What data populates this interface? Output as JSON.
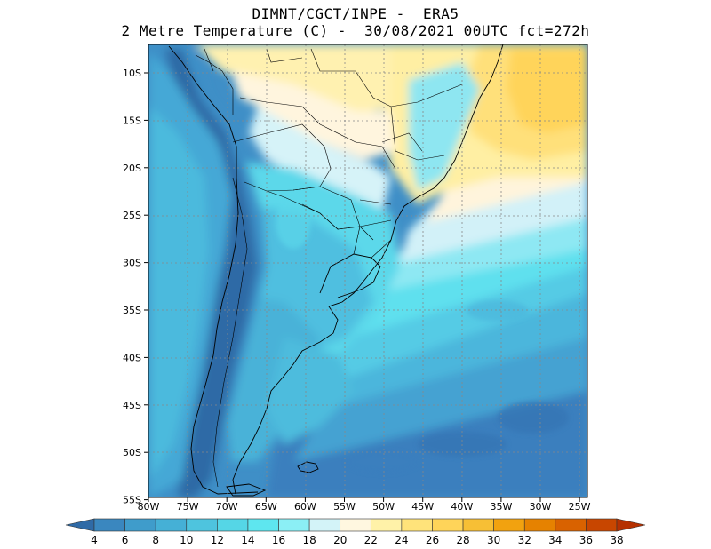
{
  "header": {
    "line1": "DIMNT/CGCT/INPE -  ERA5",
    "line2": "2 Metre Temperature (C) -  30/08/2021 00UTC fct=272h"
  },
  "map": {
    "lon_range": [
      -80,
      -24
    ],
    "lat_range": [
      -55,
      -8
    ],
    "lat_ticks": [
      "10S",
      "15S",
      "20S",
      "25S",
      "30S",
      "35S",
      "40S",
      "45S",
      "50S",
      "55S"
    ],
    "lon_ticks": [
      "80W",
      "75W",
      "70W",
      "65W",
      "60W",
      "55W",
      "50W",
      "45W",
      "40W",
      "35W",
      "30W",
      "25W"
    ],
    "grid": "dotted"
  },
  "colorbar": {
    "labels": [
      "4",
      "6",
      "8",
      "10",
      "12",
      "14",
      "16",
      "18",
      "20",
      "22",
      "24",
      "26",
      "28",
      "30",
      "32",
      "34",
      "36",
      "38"
    ],
    "colors": [
      "#2f6aa6",
      "#3a87bf",
      "#3f9ccb",
      "#45b0d6",
      "#4ec4de",
      "#55d6e6",
      "#5ee6ef",
      "#8beff5",
      "#d3f3f8",
      "#fff7e0",
      "#fff2a8",
      "#ffe37a",
      "#ffd459",
      "#f7bf35",
      "#f2a20f",
      "#e68200",
      "#d96200",
      "#c84600",
      "#b53000"
    ],
    "units": "C"
  }
}
